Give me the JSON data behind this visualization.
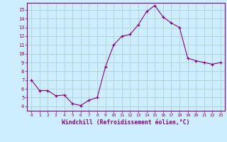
{
  "x": [
    0,
    1,
    2,
    3,
    4,
    5,
    6,
    7,
    8,
    9,
    10,
    11,
    12,
    13,
    14,
    15,
    16,
    17,
    18,
    19,
    20,
    21,
    22,
    23
  ],
  "y": [
    7.0,
    5.8,
    5.8,
    5.2,
    5.3,
    4.3,
    4.1,
    4.7,
    5.0,
    8.5,
    11.0,
    12.0,
    12.2,
    13.3,
    14.8,
    15.5,
    14.2,
    13.5,
    13.0,
    9.5,
    9.2,
    9.0,
    8.8,
    9.0
  ],
  "xlabel": "Windchill (Refroidissement éolien,°C)",
  "ylim": [
    3.5,
    15.8
  ],
  "xlim": [
    -0.5,
    23.5
  ],
  "yticks": [
    4,
    5,
    6,
    7,
    8,
    9,
    10,
    11,
    12,
    13,
    14,
    15
  ],
  "xticks": [
    0,
    1,
    2,
    3,
    4,
    5,
    6,
    7,
    8,
    9,
    10,
    11,
    12,
    13,
    14,
    15,
    16,
    17,
    18,
    19,
    20,
    21,
    22,
    23
  ],
  "line_color": "#880088",
  "marker": "+",
  "bg_color": "#cceeff",
  "grid_color": "#aacccc",
  "tick_label_color": "#880088",
  "xlabel_color": "#880088",
  "figsize": [
    3.2,
    2.0
  ],
  "dpi": 100
}
